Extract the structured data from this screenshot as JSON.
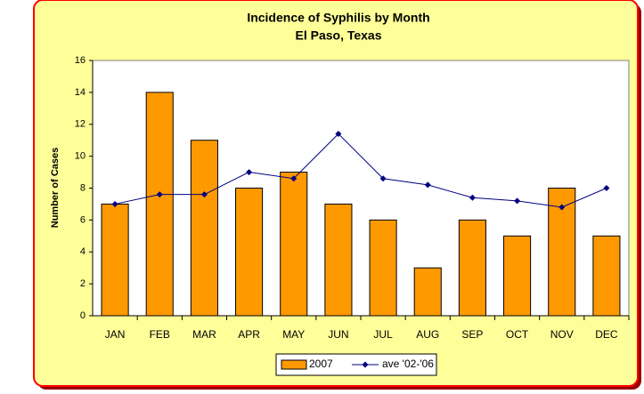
{
  "chart_data": {
    "type": "bar",
    "title": "Incidence of Syphilis by Month",
    "subtitle": "El Paso, Texas",
    "y_label": "Number of Cases",
    "categories": [
      "JAN",
      "FEB",
      "MAR",
      "APR",
      "MAY",
      "JUN",
      "JUL",
      "AUG",
      "SEP",
      "OCT",
      "NOV",
      "DEC"
    ],
    "series": [
      {
        "name": "2007",
        "type": "bar",
        "color": "#ff9900",
        "values": [
          7,
          14,
          11,
          8,
          9,
          7,
          6,
          3,
          6,
          5,
          8,
          5
        ]
      },
      {
        "name": "ave '02-'06",
        "type": "line",
        "color": "#000080",
        "values": [
          7.0,
          7.6,
          7.6,
          9.0,
          8.6,
          11.4,
          8.6,
          8.2,
          7.4,
          7.2,
          6.8,
          8.0
        ]
      }
    ],
    "ylim": [
      0,
      16
    ],
    "yticks": [
      0,
      2,
      4,
      6,
      8,
      10,
      12,
      14,
      16
    ],
    "grid": false,
    "legend": "bottom"
  }
}
